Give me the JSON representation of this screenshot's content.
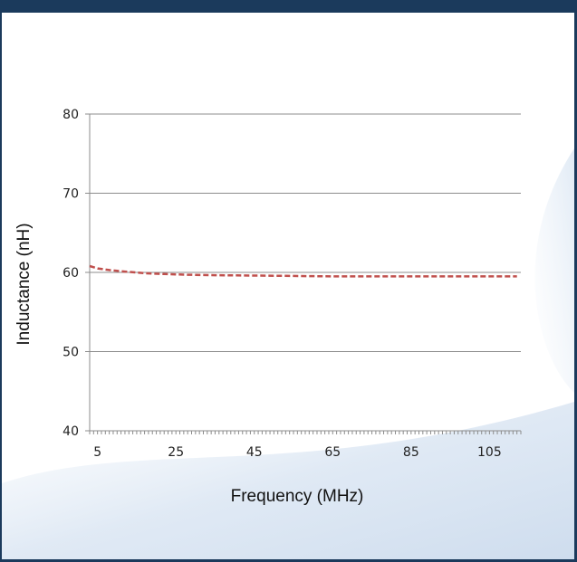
{
  "chart_data": {
    "type": "line",
    "title": "",
    "xlabel": "Frequency (MHz)",
    "ylabel": "Inductance  (nH)",
    "xlim": [
      3,
      113
    ],
    "ylim": [
      40,
      80
    ],
    "x_ticks": [
      5,
      25,
      45,
      65,
      85,
      105
    ],
    "y_ticks": [
      40,
      50,
      60,
      70,
      80
    ],
    "grid": "horizontal",
    "series": [
      {
        "color": "#c0504d",
        "style": "dashed",
        "x": [
          3,
          5,
          8,
          12,
          17,
          22,
          28,
          35,
          45,
          55,
          65,
          75,
          85,
          95,
          105,
          112
        ],
        "y": [
          60.8,
          60.5,
          60.3,
          60.1,
          59.9,
          59.8,
          59.7,
          59.65,
          59.6,
          59.55,
          59.5,
          59.5,
          59.5,
          59.5,
          59.5,
          59.5
        ]
      }
    ]
  }
}
